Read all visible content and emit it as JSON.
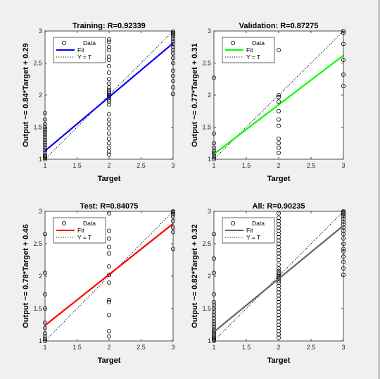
{
  "chart_data": [
    {
      "type": "scatter",
      "title": "Training: R=0.92339",
      "xlabel": "Target",
      "ylabel": "Output ~= 0.84*Target + 0.29",
      "xlim": [
        1,
        3
      ],
      "ylim": [
        1,
        3
      ],
      "xticks": [
        "1",
        "1.5",
        "2",
        "2.5",
        "3"
      ],
      "yticks": [
        "1",
        "1.5",
        "2",
        "2.5",
        "3"
      ],
      "fit_color": "#0000ff",
      "fit": [
        [
          1,
          1.13
        ],
        [
          3,
          2.81
        ]
      ],
      "legend": [
        "Data",
        "Fit",
        "Y = T"
      ],
      "data": {
        "x1": [
          1.0,
          1.02,
          1.04,
          1.06,
          1.1,
          1.14,
          1.18,
          1.22,
          1.26,
          1.3,
          1.34,
          1.38,
          1.42,
          1.46,
          1.5,
          1.55,
          1.62,
          1.72
        ],
        "x2": [
          1.07,
          1.12,
          1.18,
          1.25,
          1.32,
          1.4,
          1.48,
          1.55,
          1.62,
          1.7,
          1.85,
          1.9,
          1.93,
          1.96,
          1.98,
          2.0,
          2.02,
          2.05,
          2.08,
          2.12,
          2.18,
          2.25,
          2.35,
          2.45,
          2.55,
          2.6,
          2.7,
          2.75,
          2.83,
          2.87
        ],
        "x3": [
          2.02,
          2.12,
          2.22,
          2.3,
          2.38,
          2.5,
          2.58,
          2.65,
          2.7,
          2.75,
          2.8,
          2.84,
          2.88,
          2.92,
          2.95,
          2.97,
          2.99
        ]
      }
    },
    {
      "type": "scatter",
      "title": "Validation: R=0.87275",
      "xlabel": "Target",
      "ylabel": "Output ~= 0.77*Target + 0.31",
      "xlim": [
        1,
        3
      ],
      "ylim": [
        1,
        3
      ],
      "xticks": [
        "1",
        "1.5",
        "2",
        "2.5",
        "3"
      ],
      "yticks": [
        "1",
        "1.5",
        "2",
        "2.5",
        "3"
      ],
      "fit_color": "#00ff00",
      "fit": [
        [
          1,
          1.08
        ],
        [
          3,
          2.62
        ]
      ],
      "legend": [
        "Data",
        "Fit",
        "Y = T"
      ],
      "data": {
        "x1": [
          1.0,
          1.03,
          1.07,
          1.1,
          1.13,
          1.18,
          1.25,
          1.4,
          2.27
        ],
        "x2": [
          1.1,
          1.18,
          1.25,
          1.32,
          1.52,
          1.62,
          1.75,
          1.9,
          1.97,
          2.0,
          2.7
        ],
        "x3": [
          2.14,
          2.32,
          2.55,
          2.8,
          2.97,
          3.0
        ]
      }
    },
    {
      "type": "scatter",
      "title": "Test: R=0.84075",
      "xlabel": "Target",
      "ylabel": "Output ~= 0.78*Target + 0.46",
      "xlim": [
        1,
        3
      ],
      "ylim": [
        1,
        3
      ],
      "xticks": [
        "1",
        "1.5",
        "2",
        "2.5",
        "3"
      ],
      "yticks": [
        "1",
        "1.5",
        "2",
        "2.5",
        "3"
      ],
      "fit_color": "#ff0000",
      "fit": [
        [
          1,
          1.24
        ],
        [
          3,
          2.81
        ]
      ],
      "legend": [
        "Data",
        "Fit",
        "Y = T"
      ],
      "data": {
        "x1": [
          1.0,
          1.03,
          1.07,
          1.12,
          1.2,
          1.28,
          1.5,
          1.72,
          2.05,
          2.65
        ],
        "x2": [
          1.07,
          1.15,
          1.4,
          1.6,
          1.63,
          1.9,
          2.02,
          2.15,
          2.35,
          2.45,
          2.58,
          2.7,
          2.97
        ],
        "x3": [
          2.42,
          2.68,
          2.75,
          2.85,
          2.92,
          2.96,
          2.99,
          3.0
        ]
      }
    },
    {
      "type": "scatter",
      "title": "All: R=0.90235",
      "xlabel": "Target",
      "ylabel": "Output ~= 0.82*Target + 0.32",
      "xlim": [
        1,
        3
      ],
      "ylim": [
        1,
        3
      ],
      "xticks": [
        "1",
        "1.5",
        "2",
        "2.5",
        "3"
      ],
      "yticks": [
        "1",
        "1.5",
        "2",
        "2.5",
        "3"
      ],
      "fit_color": "#666666",
      "fit": [
        [
          1,
          1.14
        ],
        [
          3,
          2.78
        ]
      ],
      "legend": [
        "Data",
        "Fit",
        "Y = T"
      ],
      "data": {
        "x1": [
          1.0,
          1.02,
          1.04,
          1.06,
          1.09,
          1.12,
          1.15,
          1.18,
          1.22,
          1.26,
          1.3,
          1.35,
          1.4,
          1.45,
          1.5,
          1.55,
          1.6,
          1.72,
          2.05,
          2.27,
          2.65
        ],
        "x2": [
          1.05,
          1.1,
          1.15,
          1.2,
          1.25,
          1.3,
          1.35,
          1.4,
          1.45,
          1.5,
          1.55,
          1.6,
          1.65,
          1.7,
          1.75,
          1.8,
          1.85,
          1.9,
          1.93,
          1.96,
          1.98,
          2.0,
          2.02,
          2.05,
          2.08,
          2.12,
          2.18,
          2.25,
          2.3,
          2.35,
          2.4,
          2.45,
          2.5,
          2.55,
          2.6,
          2.65,
          2.7,
          2.75,
          2.8,
          2.85,
          2.9,
          2.97
        ],
        "x3": [
          2.02,
          2.12,
          2.22,
          2.3,
          2.38,
          2.42,
          2.5,
          2.58,
          2.65,
          2.7,
          2.75,
          2.8,
          2.84,
          2.88,
          2.92,
          2.95,
          2.97,
          2.99,
          3.0
        ]
      }
    }
  ]
}
